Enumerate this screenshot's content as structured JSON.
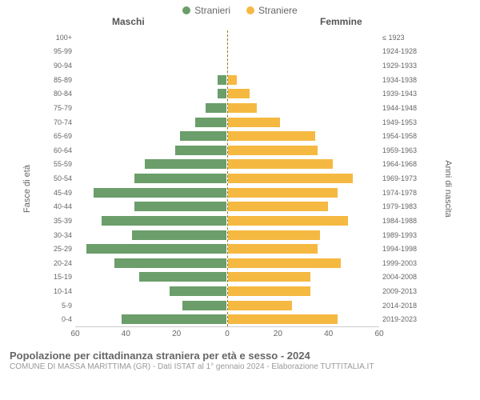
{
  "legend": {
    "male": {
      "label": "Stranieri",
      "color": "#6b9e6b"
    },
    "female": {
      "label": "Straniere",
      "color": "#f5b942"
    }
  },
  "headers": {
    "male": "Maschi",
    "female": "Femmine"
  },
  "axis_titles": {
    "left": "Fasce di età",
    "right": "Anni di nascita"
  },
  "chart": {
    "type": "population-pyramid",
    "x_max": 60,
    "x_ticks_left": [
      60,
      40,
      20,
      0
    ],
    "x_ticks_right": [
      0,
      20,
      40,
      60
    ],
    "bar_border": "#ffffff",
    "male_color": "#6b9e6b",
    "female_color": "#f5b942",
    "background": "#ffffff",
    "rows": [
      {
        "age": "100+",
        "birth": "≤ 1923",
        "m": 0,
        "f": 0
      },
      {
        "age": "95-99",
        "birth": "1924-1928",
        "m": 0,
        "f": 0
      },
      {
        "age": "90-94",
        "birth": "1929-1933",
        "m": 0,
        "f": 0
      },
      {
        "age": "85-89",
        "birth": "1934-1938",
        "m": 4,
        "f": 4
      },
      {
        "age": "80-84",
        "birth": "1939-1943",
        "m": 4,
        "f": 9
      },
      {
        "age": "75-79",
        "birth": "1944-1948",
        "m": 9,
        "f": 12
      },
      {
        "age": "70-74",
        "birth": "1949-1953",
        "m": 13,
        "f": 21
      },
      {
        "age": "65-69",
        "birth": "1954-1958",
        "m": 19,
        "f": 35
      },
      {
        "age": "60-64",
        "birth": "1959-1963",
        "m": 21,
        "f": 36
      },
      {
        "age": "55-59",
        "birth": "1964-1968",
        "m": 33,
        "f": 42
      },
      {
        "age": "50-54",
        "birth": "1969-1973",
        "m": 37,
        "f": 50
      },
      {
        "age": "45-49",
        "birth": "1974-1978",
        "m": 53,
        "f": 44
      },
      {
        "age": "40-44",
        "birth": "1979-1983",
        "m": 37,
        "f": 40
      },
      {
        "age": "35-39",
        "birth": "1984-1988",
        "m": 50,
        "f": 48
      },
      {
        "age": "30-34",
        "birth": "1989-1993",
        "m": 38,
        "f": 37
      },
      {
        "age": "25-29",
        "birth": "1994-1998",
        "m": 56,
        "f": 36
      },
      {
        "age": "20-24",
        "birth": "1999-2003",
        "m": 45,
        "f": 45
      },
      {
        "age": "15-19",
        "birth": "2004-2008",
        "m": 35,
        "f": 33
      },
      {
        "age": "10-14",
        "birth": "2009-2013",
        "m": 23,
        "f": 33
      },
      {
        "age": "5-9",
        "birth": "2014-2018",
        "m": 18,
        "f": 26
      },
      {
        "age": "0-4",
        "birth": "2019-2023",
        "m": 42,
        "f": 44
      }
    ]
  },
  "footer": {
    "title": "Popolazione per cittadinanza straniera per età e sesso - 2024",
    "subtitle": "COMUNE DI MASSA MARITTIMA (GR) - Dati ISTAT al 1° gennaio 2024 - Elaborazione TUTTITALIA.IT"
  }
}
